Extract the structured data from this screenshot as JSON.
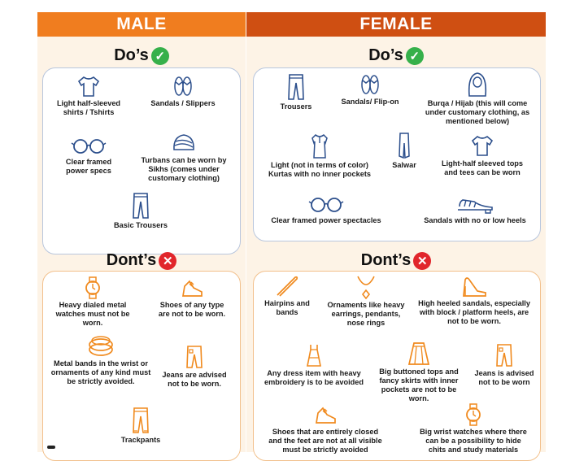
{
  "male": {
    "header": "MALE",
    "dos_title": "Do’s",
    "donts_title": "Dont’s",
    "dos": [
      {
        "icon": "tshirt-icon",
        "label": "Light half-sleeved shirts / Tshirts"
      },
      {
        "icon": "sandals-icon",
        "label": "Sandals / Slippers"
      },
      {
        "icon": "glasses-icon",
        "label": "Clear framed power specs"
      },
      {
        "icon": "turban-icon",
        "label": "Turbans can be worn by Sikhs (comes under customary clothing)"
      },
      {
        "icon": "trousers-icon",
        "label": "Basic Trousers"
      }
    ],
    "donts": [
      {
        "icon": "metal-watch-icon",
        "label": "Heavy dialed metal watches must not be worn."
      },
      {
        "icon": "shoe-icon",
        "label": "Shoes of any type are not to be worn."
      },
      {
        "icon": "metal-bands-icon",
        "label": "Metal bands in the wrist or ornaments of any kind must be strictly avoided."
      },
      {
        "icon": "jeans-icon",
        "label": "Jeans are advised not to be worn."
      },
      {
        "icon": "trackpants-icon",
        "label": "Trackpants"
      }
    ]
  },
  "female": {
    "header": "FEMALE",
    "dos_title": "Do’s",
    "donts_title": "Dont’s",
    "dos": [
      {
        "icon": "trousers-icon",
        "label": "Trousers"
      },
      {
        "icon": "sandals-icon",
        "label": "Sandals/ Flip-on"
      },
      {
        "icon": "hijab-icon",
        "label": "Burqa / Hijab (this will come under customary clothing, as mentioned below)"
      },
      {
        "icon": "kurta-icon",
        "label": "Light (not in terms of color) Kurtas with no inner pockets"
      },
      {
        "icon": "salwar-icon",
        "label": "Salwar"
      },
      {
        "icon": "tshirt-icon",
        "label": "Light-half sleeved tops and tees can be worn"
      },
      {
        "icon": "glasses-icon",
        "label": "Clear framed power spectacles"
      },
      {
        "icon": "low-heel-sandals-icon",
        "label": "Sandals with no or low heels"
      }
    ],
    "donts": [
      {
        "icon": "hairpin-icon",
        "label": "Hairpins and bands"
      },
      {
        "icon": "necklace-icon",
        "label": "Ornaments like heavy earrings, pendants, nose rings"
      },
      {
        "icon": "high-heel-icon",
        "label": "High heeled sandals, especially with block / platform heels, are not to be worn."
      },
      {
        "icon": "dress-icon",
        "label": "Any dress item with heavy embroidery is to be avoided"
      },
      {
        "icon": "skirt-icon",
        "label": "Big buttoned tops and fancy skirts with inner pockets are not to be worn."
      },
      {
        "icon": "jeans-icon",
        "label": "Jeans is advised not to be worn"
      },
      {
        "icon": "shoe-icon",
        "label": "Shoes that are entirely closed and the feet are not at all visible must be strictly avoided"
      },
      {
        "icon": "wrist-watch-icon",
        "label": "Big wrist watches where there can be a possibility to hide chits and study materials"
      }
    ]
  },
  "colors": {
    "male_header": "#f07d1f",
    "female_header": "#cf4f12",
    "do_icon": "#2c4f8c",
    "dont_icon": "#f08a1e",
    "tick": "#36b04a",
    "cross": "#e1262c"
  }
}
